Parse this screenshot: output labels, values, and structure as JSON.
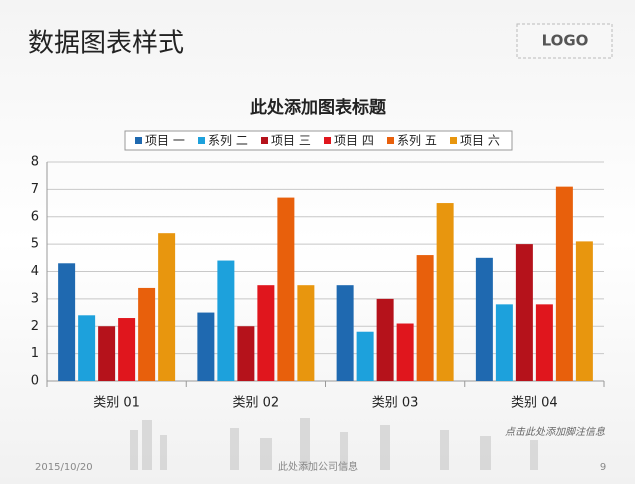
{
  "slide": {
    "title": "数据图表样式",
    "logo": "LOGO",
    "date": "2015/10/20",
    "company": "此处添加公司信息",
    "page": "9",
    "footnote": "点击此处添加脚注信息"
  },
  "chart_data": {
    "type": "bar",
    "title": "此处添加图表标题",
    "categories": [
      "类别 01",
      "类别 02",
      "类别 03",
      "类别 04"
    ],
    "series": [
      {
        "name": "项目 一",
        "color": "#1f69b0",
        "values": [
          4.3,
          2.5,
          3.5,
          4.5
        ]
      },
      {
        "name": "系列 二",
        "color": "#1da1dc",
        "values": [
          2.4,
          4.4,
          1.8,
          2.8
        ]
      },
      {
        "name": "项目 三",
        "color": "#b5121b",
        "values": [
          2.0,
          2.0,
          3.0,
          5.0
        ]
      },
      {
        "name": "项目 四",
        "color": "#e0161d",
        "values": [
          2.3,
          3.5,
          2.1,
          2.8
        ]
      },
      {
        "name": "系列 五",
        "color": "#e8600c",
        "values": [
          3.4,
          6.7,
          4.6,
          7.1
        ]
      },
      {
        "name": "项目 六",
        "color": "#e8960e",
        "values": [
          5.4,
          3.5,
          6.5,
          5.1
        ]
      }
    ],
    "ylim": [
      0,
      8
    ],
    "yticks": [
      0,
      1,
      2,
      3,
      4,
      5,
      6,
      7,
      8
    ],
    "grid": true,
    "legend": "top"
  }
}
